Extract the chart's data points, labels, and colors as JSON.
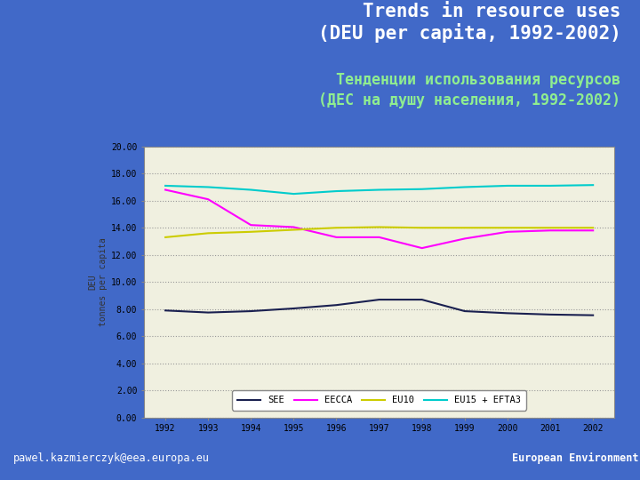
{
  "title_en": "Trends in resource uses\n(DEU per capita, 1992-2002)",
  "title_ru": "Тенденции использования ресурсов\n(ДЕС на душу населения, 1992-2002)",
  "bg_color": "#4169C8",
  "title_color_en": "#ffffff",
  "title_color_ru": "#90EE90",
  "separator_color": "#B8960C",
  "footer_text_left": "pawel.kazmierczyk@eea.europa.eu",
  "footer_text_right": "European Environment Agency",
  "footer_color": "#ffffff",
  "years": [
    1992,
    1993,
    1994,
    1995,
    1996,
    1997,
    1998,
    1999,
    2000,
    2001,
    2002
  ],
  "SEE": [
    7.9,
    7.75,
    7.85,
    8.05,
    8.3,
    8.7,
    8.7,
    7.85,
    7.7,
    7.6,
    7.55
  ],
  "EECCA": [
    16.8,
    16.1,
    14.2,
    14.05,
    13.3,
    13.3,
    12.5,
    13.2,
    13.7,
    13.8,
    13.8
  ],
  "EU10": [
    13.3,
    13.6,
    13.7,
    13.85,
    14.0,
    14.05,
    14.0,
    14.0,
    14.0,
    14.0,
    14.0
  ],
  "EU15_EFTA3": [
    17.1,
    17.0,
    16.8,
    16.5,
    16.7,
    16.8,
    16.85,
    17.0,
    17.1,
    17.1,
    17.15
  ],
  "SEE_color": "#1a2050",
  "EECCA_color": "#ff00ff",
  "EU10_color": "#cccc00",
  "EU15_EFTA3_color": "#00cccc",
  "ylim": [
    0,
    20
  ],
  "yticks": [
    0,
    2,
    4,
    6,
    8,
    10,
    12,
    14,
    16,
    18,
    20
  ],
  "ylabel": "DEU\ntonnes per capita",
  "grid_color": "#999999",
  "chart_area_bg": "#f0f0e0",
  "outer_chart_bg": "#e8e8d8"
}
